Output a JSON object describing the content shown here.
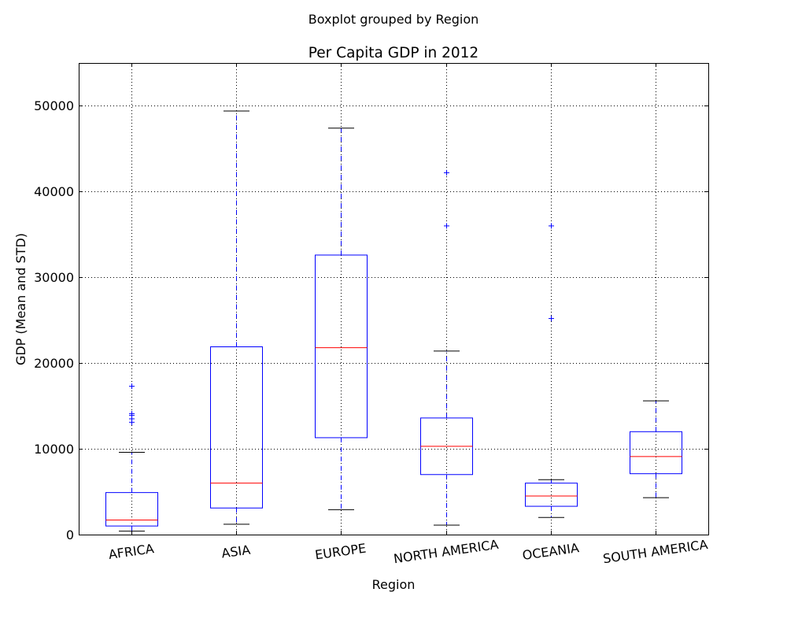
{
  "chart_data": {
    "type": "box",
    "suptitle": "Boxplot grouped by Region",
    "title": "Per Capita GDP in 2012",
    "xlabel": "Region",
    "ylabel": "GDP (Mean and STD)",
    "ylim": [
      0,
      55000
    ],
    "yticks": [
      0,
      10000,
      20000,
      30000,
      40000,
      50000
    ],
    "ytick_labels": [
      "0",
      "10000",
      "20000",
      "30000",
      "40000",
      "50000"
    ],
    "grid": true,
    "xtick_rotation_deg": -8,
    "categories": [
      "AFRICA",
      "ASIA",
      "EUROPE",
      "NORTH AMERICA",
      "OCEANIA",
      "SOUTH AMERICA"
    ],
    "boxes": [
      {
        "category": "AFRICA",
        "whisker_low": 400,
        "q1": 1000,
        "median": 1700,
        "q3": 4900,
        "whisker_high": 9600,
        "fliers": [
          13100,
          13500,
          13900,
          14100,
          17300
        ]
      },
      {
        "category": "ASIA",
        "whisker_low": 1200,
        "q1": 3100,
        "median": 6000,
        "q3": 21900,
        "whisker_high": 49400,
        "fliers": []
      },
      {
        "category": "EUROPE",
        "whisker_low": 2900,
        "q1": 11300,
        "median": 21800,
        "q3": 32600,
        "whisker_high": 47400,
        "fliers": []
      },
      {
        "category": "NORTH AMERICA",
        "whisker_low": 1100,
        "q1": 7000,
        "median": 10300,
        "q3": 13600,
        "whisker_high": 21400,
        "fliers": [
          36000,
          42200
        ]
      },
      {
        "category": "OCEANIA",
        "whisker_low": 2000,
        "q1": 3300,
        "median": 4500,
        "q3": 6000,
        "whisker_high": 6400,
        "fliers": [
          25200,
          36000
        ]
      },
      {
        "category": "SOUTH AMERICA",
        "whisker_low": 4300,
        "q1": 7100,
        "median": 9100,
        "q3": 12000,
        "whisker_high": 15600,
        "fliers": []
      }
    ],
    "colors": {
      "box": "#0000ff",
      "whisker": "#0000ff",
      "cap": "#000000",
      "median": "#ff0000",
      "flier": "#0000ff",
      "grid": "#000000",
      "axes": "#000000"
    }
  }
}
